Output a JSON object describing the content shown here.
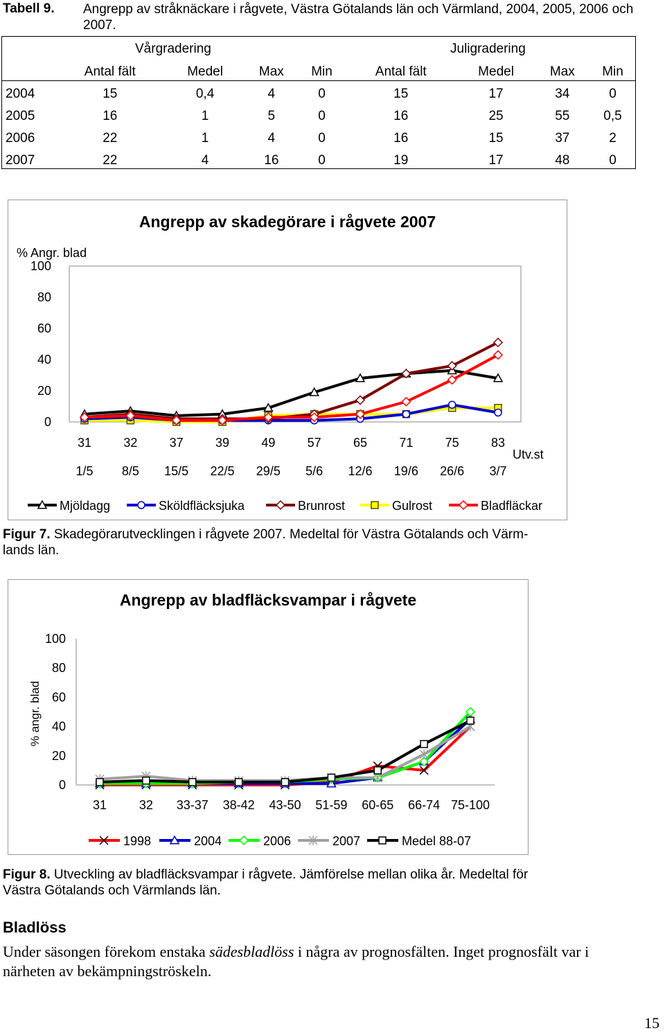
{
  "table": {
    "label": "Tabell 9.",
    "title": "Angrepp av stråknäckare i rågvete, Västra Götalands län och Värmland, 2004, 2005, 2006 och 2007.",
    "group_spring": "Vårgradering",
    "group_july": "Juligradering",
    "headers": [
      "",
      "Antal fält",
      "Medel",
      "Max",
      "Min",
      "Antal fält",
      "Medel",
      "Max",
      "Min"
    ],
    "rows": [
      [
        "2004",
        "15",
        "0,4",
        "4",
        "0",
        "15",
        "17",
        "34",
        "0"
      ],
      [
        "2005",
        "16",
        "1",
        "5",
        "0",
        "16",
        "25",
        "55",
        "0,5"
      ],
      [
        "2006",
        "22",
        "1",
        "4",
        "0",
        "16",
        "15",
        "37",
        "2"
      ],
      [
        "2007",
        "22",
        "4",
        "16",
        "0",
        "19",
        "17",
        "48",
        "0"
      ]
    ]
  },
  "chart_data": [
    {
      "type": "line",
      "title": "Angrepp av skadegörare i rågvete 2007",
      "ylabel": "% Angr. blad",
      "xlabel": "Utv.st",
      "ylim": [
        0,
        100
      ],
      "yticks": [
        0,
        20,
        40,
        60,
        80,
        100
      ],
      "x": [
        "31",
        "32",
        "37",
        "39",
        "49",
        "57",
        "65",
        "71",
        "75",
        "83"
      ],
      "x_dates": [
        "1/5",
        "8/5",
        "15/5",
        "22/5",
        "29/5",
        "5/6",
        "12/6",
        "19/6",
        "26/6",
        "3/7"
      ],
      "grid": false,
      "legend_position": "bottom",
      "series": [
        {
          "name": "Mjöldagg",
          "color": "#000000",
          "marker": "triangle",
          "values": [
            5,
            7,
            4,
            5,
            9,
            19,
            28,
            31,
            33,
            28
          ]
        },
        {
          "name": "Sköldfläcksjuka",
          "color": "#0000cc",
          "marker": "circle",
          "values": [
            2,
            3,
            1,
            1,
            1,
            1,
            2,
            5,
            11,
            6
          ]
        },
        {
          "name": "Brunrost",
          "color": "#7a0000",
          "marker": "diamond",
          "values": [
            3,
            5,
            2,
            2,
            2,
            5,
            14,
            31,
            36,
            51
          ]
        },
        {
          "name": "Gulrost",
          "color": "#ffff00",
          "marker": "square",
          "values": [
            1,
            1,
            0,
            0,
            4,
            5,
            5,
            5,
            9,
            9
          ]
        },
        {
          "name": "Bladfläckar",
          "color": "#ff0000",
          "marker": "diamond",
          "values": [
            3,
            4,
            1,
            1,
            3,
            3,
            5,
            13,
            27,
            43
          ]
        }
      ]
    },
    {
      "type": "line",
      "title": "Angrepp av bladfläcksvampar i rågvete",
      "ylabel": "% angr. blad",
      "ylim": [
        0,
        100
      ],
      "yticks": [
        0,
        20,
        40,
        60,
        80,
        100
      ],
      "x": [
        "31",
        "32",
        "33-37",
        "38-42",
        "43-50",
        "51-59",
        "60-65",
        "66-74",
        "75-100"
      ],
      "grid": false,
      "legend_position": "bottom",
      "series": [
        {
          "name": "1998",
          "color": "#ff0000",
          "marker": "x",
          "values": [
            0,
            0,
            0,
            0,
            0,
            2,
            13,
            10,
            40
          ]
        },
        {
          "name": "2004",
          "color": "#0000cc",
          "marker": "triangle",
          "values": [
            1,
            1,
            1,
            1,
            1,
            1,
            5,
            16,
            45
          ]
        },
        {
          "name": "2006",
          "color": "#00ff00",
          "marker": "diamond",
          "values": [
            1,
            1,
            1,
            2,
            2,
            4,
            5,
            16,
            50
          ]
        },
        {
          "name": "2007",
          "color": "#a0a0a0",
          "marker": "asterisk",
          "values": [
            4,
            6,
            3,
            3,
            3,
            5,
            5,
            21,
            40
          ]
        },
        {
          "name": "Medel 88-07",
          "color": "#000000",
          "marker": "square",
          "values": [
            2,
            3,
            2,
            2,
            2,
            5,
            10,
            28,
            44
          ]
        }
      ]
    }
  ],
  "figure7": {
    "label": "Figur 7.",
    "caption": "Skadegörarutvecklingen i rågvete 2007. Medeltal för Västra Götalands och Värm-",
    "caption_cont": "lands län."
  },
  "figure8": {
    "label": "Figur 8.",
    "caption": "Utveckling av bladfläcksvampar i rågvete. Jämförelse mellan olika år. Medeltal för",
    "caption_cont": "Västra Götalands och Värmlands län."
  },
  "section": {
    "heading": "Bladlöss",
    "text_before": "Under säsongen förekom enstaka ",
    "text_italic": "sädesbladlöss",
    "text_after": " i några av prognosfälten. Inget prognosfält var i",
    "text_line2": "närheten av bekämpningströskeln."
  },
  "page_number": "15"
}
